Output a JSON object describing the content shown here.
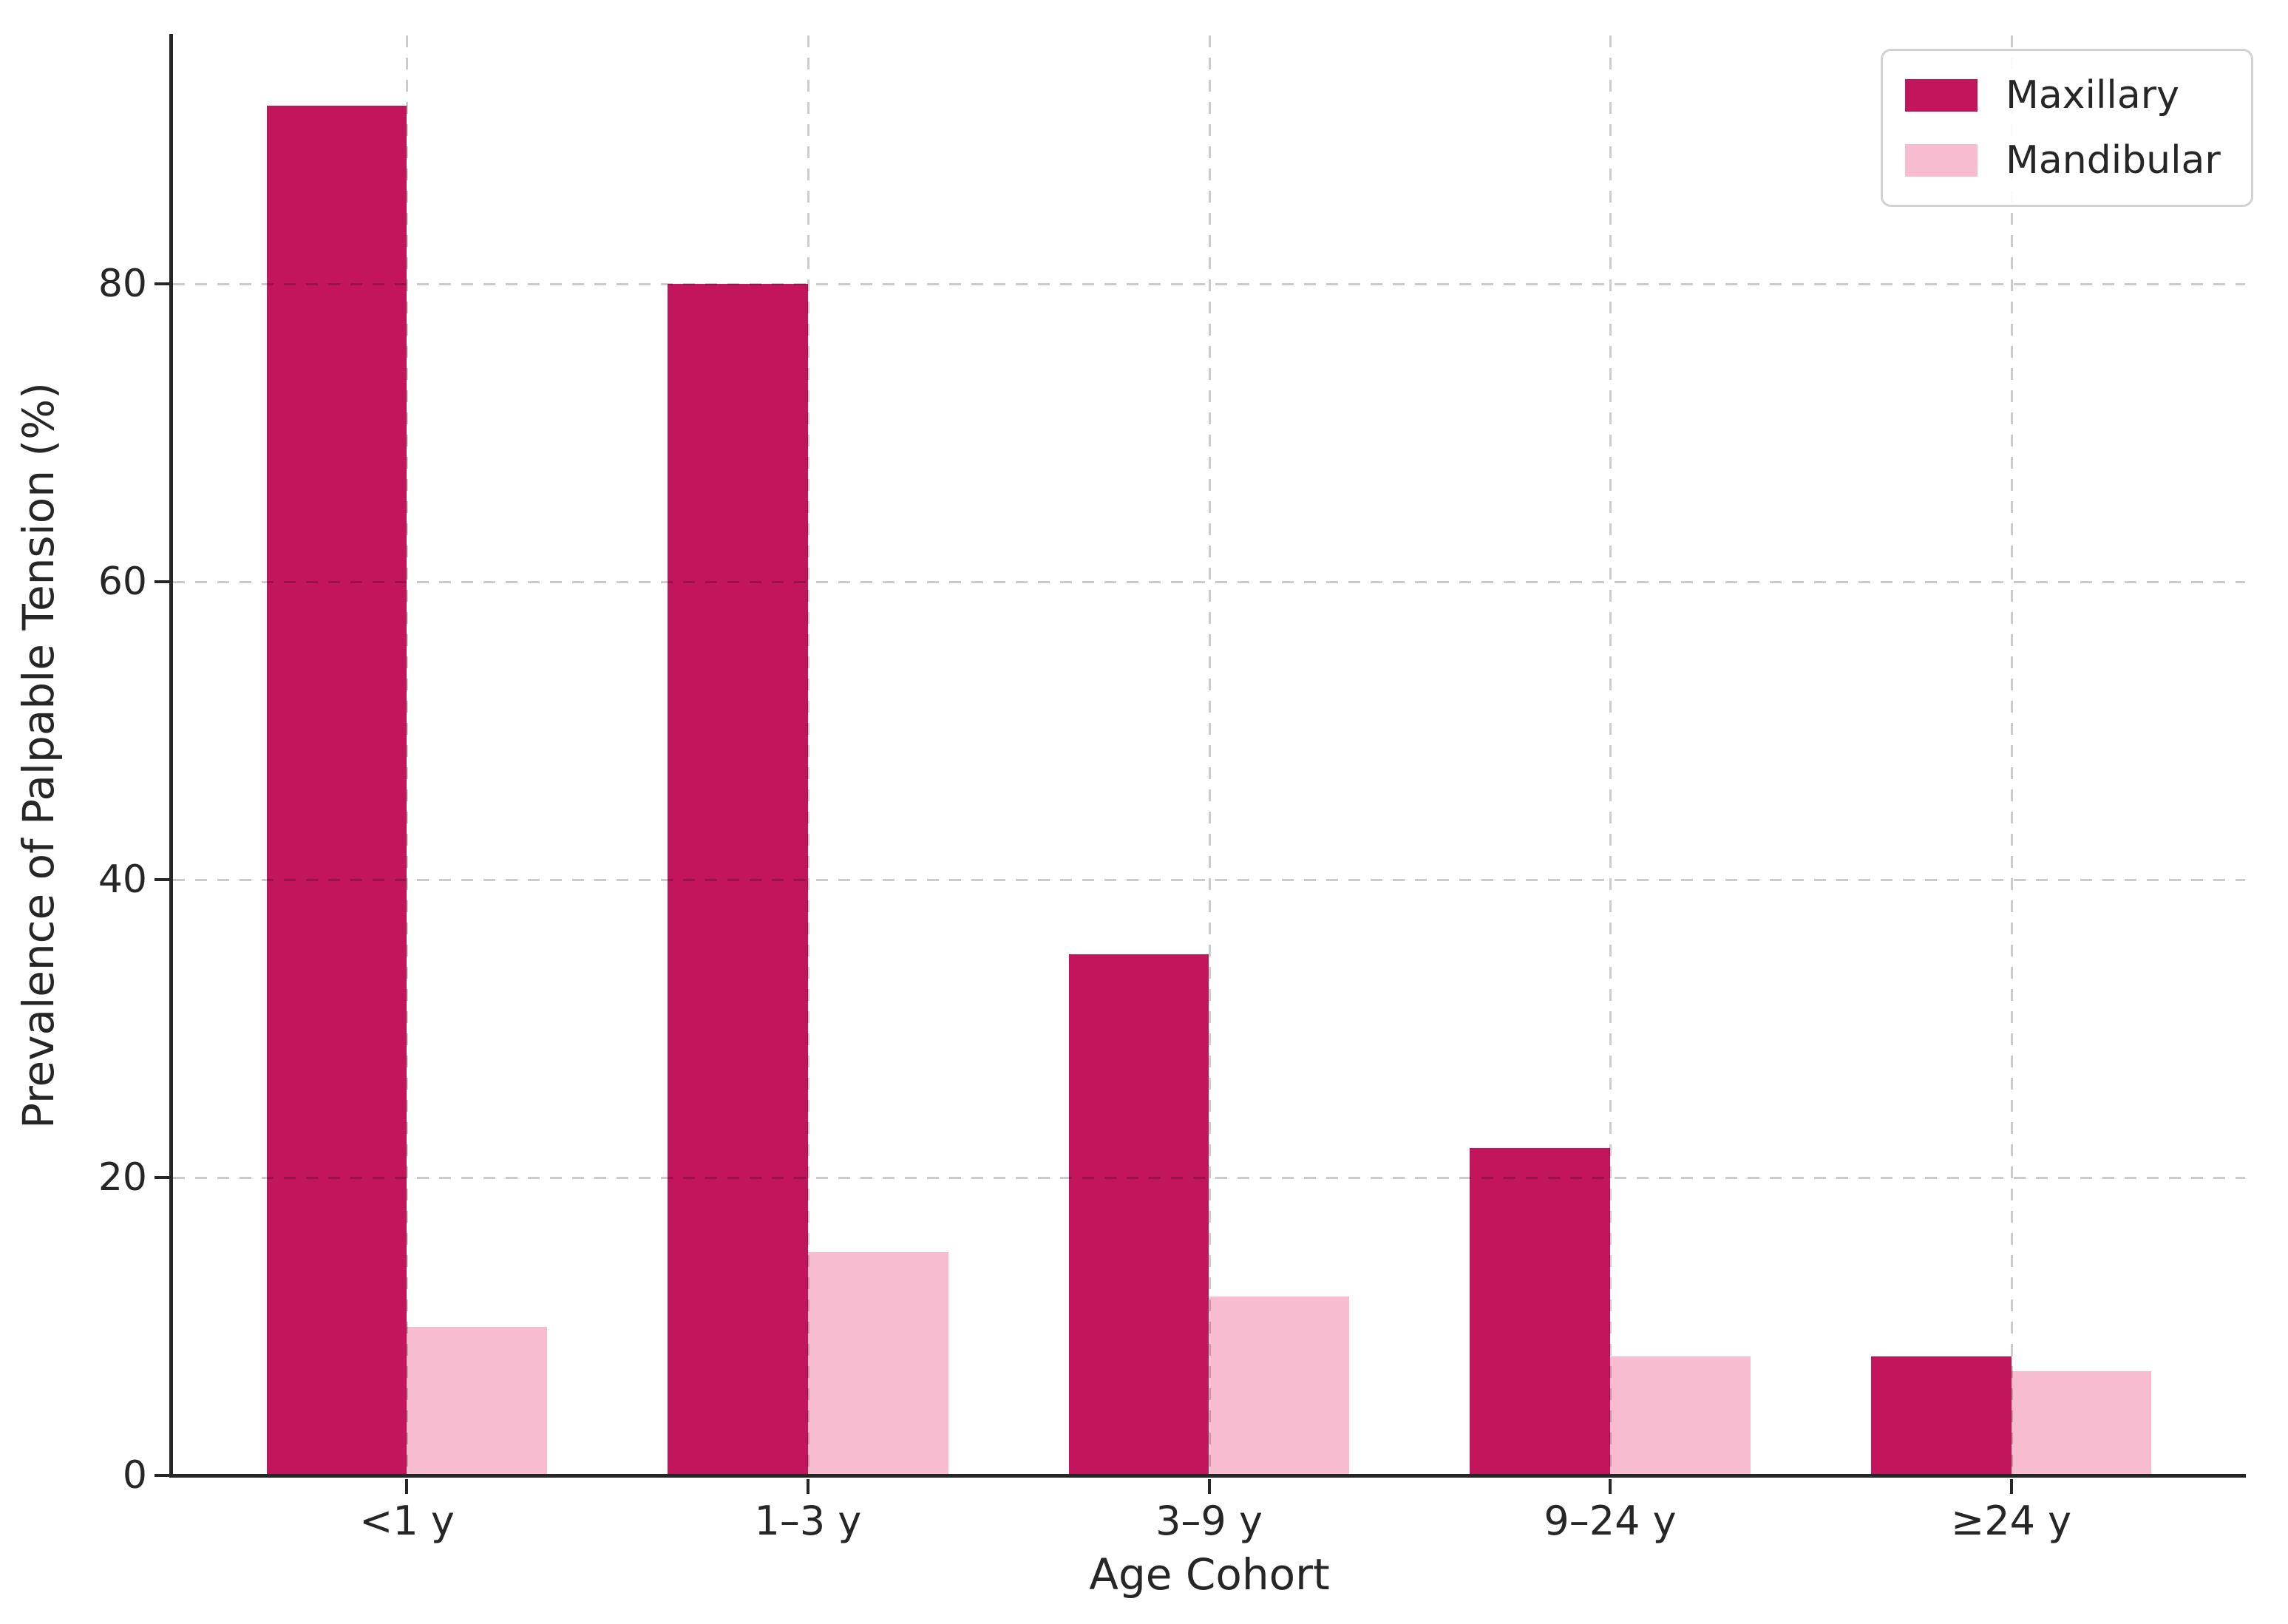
{
  "chart_data": {
    "type": "bar",
    "title": "",
    "xlabel": "Age Cohort",
    "ylabel": "Prevalence of Palpable Tension (%)",
    "categories": [
      "<1 y",
      "1–3 y",
      "3–9 y",
      "9–24 y",
      "≥24 y"
    ],
    "series": [
      {
        "name": "Maxillary",
        "color": "#C2155B",
        "values": [
          92,
          80,
          35,
          22,
          8
        ]
      },
      {
        "name": "Mandibular",
        "color": "#F7BCD0",
        "values": [
          10,
          15,
          12,
          8,
          7
        ]
      }
    ],
    "yticks": [
      0,
      20,
      40,
      60,
      80
    ],
    "ylim": [
      0,
      96.7
    ],
    "x_range": [
      -0.5833,
      4.5833
    ],
    "bar_width": 0.35,
    "grid": {
      "show": true,
      "style": "dashed",
      "color": "#cccccc",
      "above_bars": true
    },
    "legend": {
      "position": "top-right"
    },
    "axis_color": "#262626",
    "text_color": "#262626",
    "background": "#ffffff"
  }
}
